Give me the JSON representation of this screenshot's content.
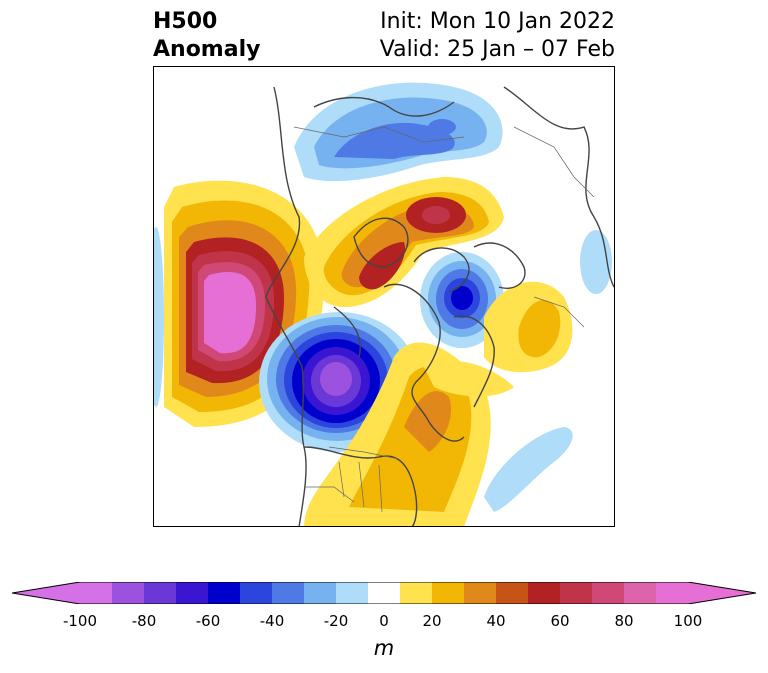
{
  "header": {
    "title_line1": "H500",
    "title_line2": "Anomaly",
    "init_label": "Init: Mon 10 Jan 2022",
    "valid_label": "Valid: 25 Jan – 07 Feb"
  },
  "map": {
    "projection": "north-polar-stereographic",
    "field": "500 hPa geopotential height anomaly",
    "features": [
      {
        "name": "pacific-ridge",
        "kind": "positive",
        "peak_m": 100
      },
      {
        "name": "western-north-america-trough",
        "kind": "negative",
        "peak_m": -100
      },
      {
        "name": "eastern-north-america-ridge",
        "kind": "positive",
        "peak_m": 60
      },
      {
        "name": "greenland-scandinavia-ridge",
        "kind": "positive",
        "peak_m": 60
      },
      {
        "name": "siberia-trough",
        "kind": "negative",
        "peak_m": -40
      },
      {
        "name": "europe-trough",
        "kind": "negative",
        "peak_m": -60
      },
      {
        "name": "north-atlantic-ridge",
        "kind": "positive",
        "peak_m": 20
      },
      {
        "name": "atlantic-negative",
        "kind": "negative",
        "peak_m": -20
      }
    ]
  },
  "colorbar": {
    "unit": "m",
    "ticks": [
      "-100",
      "-80",
      "-60",
      "-40",
      "-20",
      "0",
      "20",
      "40",
      "60",
      "80",
      "100"
    ],
    "levels": [
      -100,
      -90,
      -80,
      -70,
      -60,
      -50,
      -40,
      -30,
      -20,
      -10,
      10,
      20,
      30,
      40,
      50,
      60,
      70,
      80,
      90,
      100
    ],
    "colors": [
      "#d571e6",
      "#9c52de",
      "#6b38d8",
      "#3a16d2",
      "#0000cc",
      "#2b45dd",
      "#4f7ae6",
      "#77b2f0",
      "#aedcf9",
      "#ffffff",
      "#ffe24d",
      "#f2b705",
      "#e0891a",
      "#c75316",
      "#b22222",
      "#c0344a",
      "#d04876",
      "#db64ab",
      "#e56fd4"
    ],
    "extend_low_color": "#d571e6",
    "extend_high_color": "#e56fd4"
  }
}
